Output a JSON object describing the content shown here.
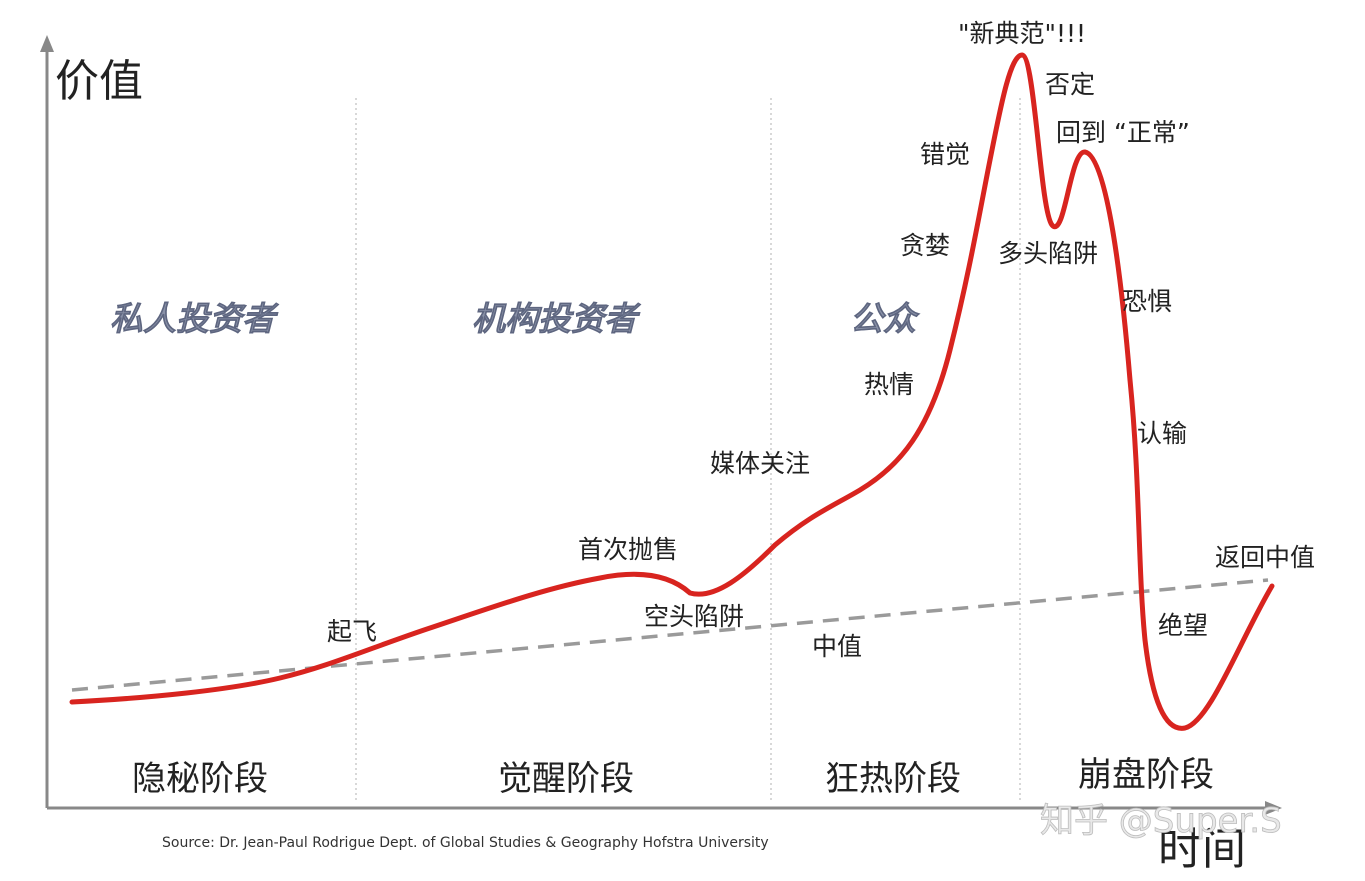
{
  "axes": {
    "y_label": "价值",
    "x_label": "时间"
  },
  "investors": [
    "私人投资者",
    "机构投资者",
    "公众"
  ],
  "phases": [
    "隐秘阶段",
    "觉醒阶段",
    "狂热阶段",
    "崩盘阶段"
  ],
  "annotations": {
    "takeoff": "起飞",
    "first_sell": "首次抛售",
    "bear_trap": "空头陷阱",
    "mean": "中值",
    "media": "媒体关注",
    "enthusiasm": "热情",
    "greed": "贪婪",
    "delusion": "错觉",
    "new_paradigm": "\"新典范\"!!!",
    "denial": "否定",
    "return_normal": "回到 “正常”",
    "bull_trap": "多头陷阱",
    "fear": "恐惧",
    "capitulation": "认输",
    "despair": "绝望",
    "return_mean": "返回中值"
  },
  "source": "Source: Dr. Jean-Paul Rodrigue Dept. of Global Studies & Geography Hofstra University",
  "watermark": "知乎 @Super.S",
  "colors": {
    "curve": "#d8241f",
    "mean_line": "#9a9a9a",
    "axis": "#888888",
    "divider": "#cccccc"
  }
}
